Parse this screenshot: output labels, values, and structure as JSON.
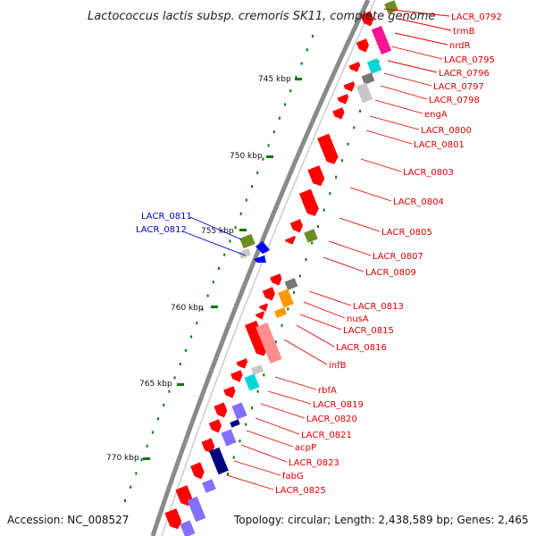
{
  "title": "Lactococcus lactis subsp. cremoris SK11, complete genome",
  "accession": "Accession: NC_008527",
  "topology": "Topology: circular; Length: 2,438,589 bp; Genes: 2,465",
  "kbp_marks": [
    "745 kbp",
    "750 kbp",
    "755 kbp",
    "760 kbp",
    "765 kbp",
    "770 kbp"
  ],
  "right_labels": [
    "LACR_0792",
    "trmB",
    "nrdR",
    "LACR_0795",
    "LACR_0796",
    "LACR_0797",
    "LACR_0798",
    "engA",
    "LACR_0800",
    "LACR_0801",
    "LACR_0803",
    "LACR_0804",
    "LACR_0805",
    "LACR_0807",
    "LACR_0809",
    "LACR_0813",
    "nusA",
    "LACR_0815",
    "LACR_0816",
    "infB",
    "rbfA",
    "LACR_0819",
    "LACR_0820",
    "LACR_0821",
    "acpP",
    "LACR_0823",
    "fabG",
    "LACR_0825"
  ],
  "left_labels": [
    "LACR_0811",
    "LACR_0812"
  ],
  "colors": {
    "gene_red": "#ff0000",
    "label_red": "#e00000",
    "label_blue": "#0000cc",
    "backbone": "#888888",
    "tick_green": "#007700",
    "olive": "#6b8e23",
    "magenta": "#ff1493",
    "cyan": "#00d8d8",
    "gray": "#777777",
    "light_gray": "#c8c8c8",
    "orange": "#ff9900",
    "pink": "#ff8f8f",
    "violet": "#8470ff",
    "navy": "#000080",
    "blue": "#0000ff"
  }
}
